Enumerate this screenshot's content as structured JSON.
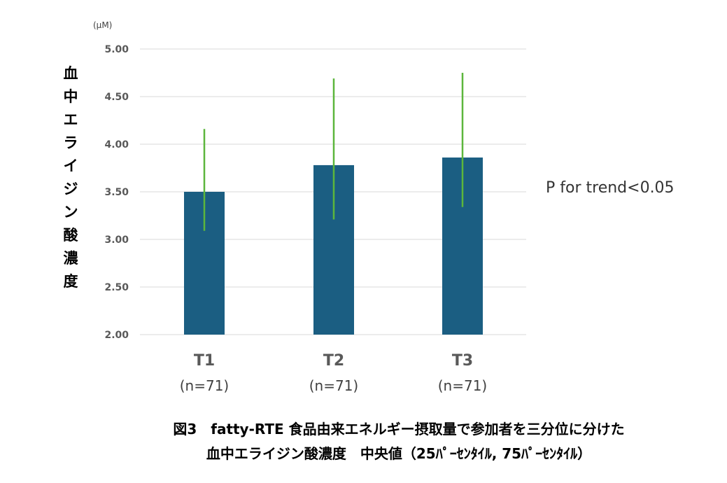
{
  "chart_data": {
    "type": "bar",
    "categories": [
      "T1",
      "T2",
      "T3"
    ],
    "sample_sizes": [
      "(n=71)",
      "(n=71)",
      "(n=71)"
    ],
    "values": [
      3.5,
      3.78,
      3.86
    ],
    "error_low": [
      3.09,
      3.21,
      3.34
    ],
    "error_high": [
      4.16,
      4.69,
      4.75
    ],
    "ylim": [
      2.0,
      5.0
    ],
    "yticks": [
      "2.00",
      "2.50",
      "3.00",
      "3.50",
      "4.00",
      "4.50",
      "5.00"
    ],
    "yunit": "(μM)",
    "ylabel": "血中エライジン酸濃度",
    "annotation": "P for trend<0.05",
    "caption_line1": "図3　fatty-RTE 食品由来エネルギー摂取量で参加者を三分位に分けた",
    "caption_line2": "血中エライジン酸濃度　中央値（25ﾊﾟｰｾﾝﾀｲﾙ, 75ﾊﾟｰｾﾝﾀｲﾙ）",
    "grid": true,
    "colors": {
      "bar": "#1b5e82",
      "error": "#5cb63c",
      "grid": "#d9d9d9"
    }
  }
}
